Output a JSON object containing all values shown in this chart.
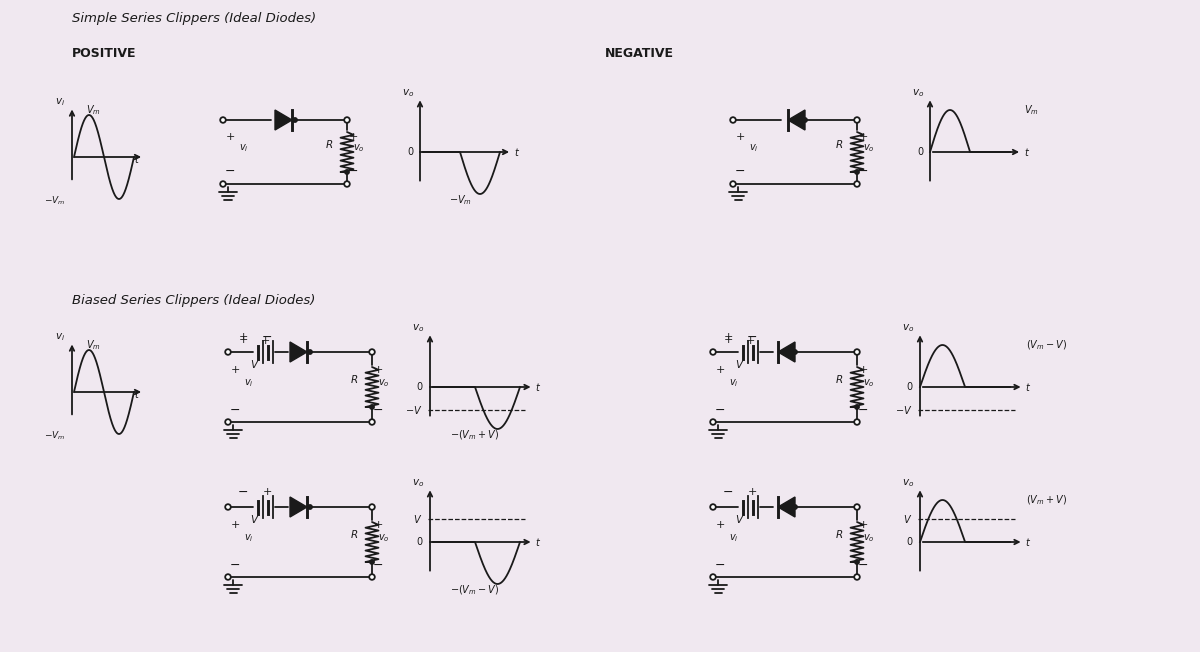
{
  "bg_color": "#f0e8f0",
  "title1": "Simple Series Clippers (Ideal Diodes)",
  "title2": "Biased Series Clippers (Ideal Diodes)",
  "label_positive": "POSITIVE",
  "label_negative": "NEGATIVE",
  "line_color": "#1a1a1a",
  "text_color": "#1a1a1a",
  "fig_width": 12.0,
  "fig_height": 6.52
}
